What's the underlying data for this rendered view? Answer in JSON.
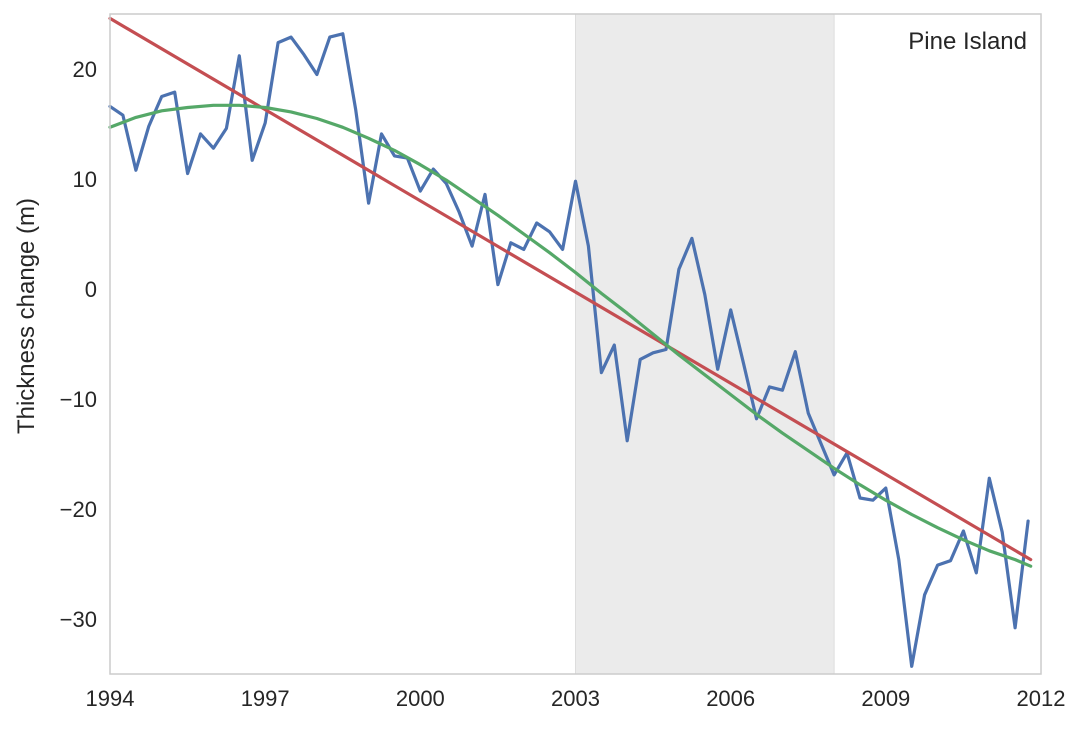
{
  "chart_data": {
    "type": "line",
    "title": "",
    "xlabel": "",
    "ylabel": "Thickness change (m)",
    "annotation": "Pine Island",
    "xlim": [
      1994,
      2012
    ],
    "ylim": [
      -35,
      25
    ],
    "xticks": [
      1994,
      1997,
      2000,
      2003,
      2006,
      2009,
      2012
    ],
    "yticks": [
      20,
      10,
      0,
      -10,
      -20,
      -30
    ],
    "ytick_labels": [
      "20",
      "10",
      "0",
      "−10",
      "−20",
      "−30"
    ],
    "grid": false,
    "shaded_region": {
      "x_start": 2003,
      "x_end": 2008,
      "color": "#ebebeb"
    },
    "series": [
      {
        "color": "#4c72b0",
        "x": [
          1994.0,
          1994.25,
          1994.5,
          1994.75,
          1995.0,
          1995.25,
          1995.5,
          1995.75,
          1996.0,
          1996.25,
          1996.5,
          1996.75,
          1997.0,
          1997.25,
          1997.5,
          1997.75,
          1998.0,
          1998.25,
          1998.5,
          1998.75,
          1999.0,
          1999.25,
          1999.5,
          1999.75,
          2000.0,
          2000.25,
          2000.5,
          2000.75,
          2001.0,
          2001.25,
          2001.5,
          2001.75,
          2002.0,
          2002.25,
          2002.5,
          2002.75,
          2003.0,
          2003.25,
          2003.5,
          2003.75,
          2004.0,
          2004.25,
          2004.5,
          2004.75,
          2005.0,
          2005.25,
          2005.5,
          2005.75,
          2006.0,
          2006.25,
          2006.5,
          2006.75,
          2007.0,
          2007.25,
          2007.5,
          2007.75,
          2008.0,
          2008.25,
          2008.5,
          2008.75,
          2009.0,
          2009.25,
          2009.5,
          2009.75,
          2010.0,
          2010.25,
          2010.5,
          2010.75,
          2011.0,
          2011.25,
          2011.5,
          2011.75
        ],
        "values": [
          16.6,
          15.8,
          10.8,
          14.8,
          17.5,
          17.9,
          10.5,
          14.1,
          12.8,
          14.6,
          21.2,
          11.7,
          15.1,
          22.4,
          22.9,
          21.3,
          19.5,
          22.9,
          23.2,
          16.3,
          7.8,
          14.1,
          12.1,
          11.9,
          8.9,
          10.9,
          9.6,
          7.0,
          3.9,
          8.6,
          0.4,
          4.2,
          3.6,
          6.0,
          5.2,
          3.6,
          9.8,
          3.9,
          -7.6,
          -5.1,
          -13.8,
          -6.4,
          -5.8,
          -5.5,
          1.8,
          4.6,
          -0.5,
          -7.3,
          -1.9,
          -6.8,
          -11.8,
          -8.9,
          -9.2,
          -5.7,
          -11.3,
          -14.1,
          -16.9,
          -14.9,
          -19.0,
          -19.2,
          -18.1,
          -24.6,
          -34.3,
          -27.8,
          -25.1,
          -24.7,
          -22.0,
          -25.8,
          -17.2,
          -22.1,
          -30.8,
          -21.1
        ]
      },
      {
        "color": "#c44e52",
        "x": [
          1994.0,
          2011.8
        ],
        "values": [
          24.6,
          -24.6
        ]
      },
      {
        "color": "#55a868",
        "x": [
          1994.0,
          1994.5,
          1995.0,
          1995.5,
          1996.0,
          1996.5,
          1997.0,
          1997.5,
          1998.0,
          1998.5,
          1999.0,
          1999.5,
          2000.0,
          2000.5,
          2001.0,
          2001.5,
          2002.0,
          2002.5,
          2003.0,
          2003.5,
          2004.0,
          2004.5,
          2005.0,
          2005.5,
          2006.0,
          2006.5,
          2007.0,
          2007.5,
          2008.0,
          2008.5,
          2009.0,
          2009.5,
          2010.0,
          2010.5,
          2011.0,
          2011.5,
          2011.8
        ],
        "values": [
          14.7,
          15.6,
          16.2,
          16.5,
          16.7,
          16.7,
          16.5,
          16.1,
          15.5,
          14.7,
          13.7,
          12.6,
          11.3,
          9.9,
          8.3,
          6.7,
          5.0,
          3.3,
          1.5,
          -0.4,
          -2.2,
          -4.1,
          -6.0,
          -7.8,
          -9.6,
          -11.4,
          -13.1,
          -14.7,
          -16.3,
          -17.8,
          -19.2,
          -20.5,
          -21.7,
          -22.8,
          -23.8,
          -24.6,
          -25.2
        ]
      }
    ]
  }
}
